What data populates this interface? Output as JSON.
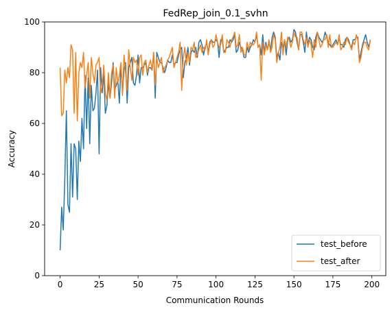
{
  "chart_data": {
    "type": "line",
    "title": "FedRep_join_0.1_svhn",
    "xlabel": "Communication Rounds",
    "ylabel": "Accuracy",
    "xlim": [
      -9.95,
      208.95
    ],
    "ylim": [
      0,
      100
    ],
    "xticks": [
      0,
      25,
      50,
      75,
      100,
      125,
      150,
      175,
      200
    ],
    "yticks": [
      0,
      20,
      40,
      60,
      80,
      100
    ],
    "grid": false,
    "legend_position": "lower-right",
    "series": [
      {
        "name": "test_before",
        "color": "#1f77b4",
        "x": [
          0,
          1,
          2,
          3,
          4,
          5,
          6,
          7,
          8,
          9,
          10,
          11,
          12,
          13,
          14,
          15,
          16,
          17,
          18,
          19,
          20,
          21,
          22,
          23,
          24,
          25,
          26,
          27,
          28,
          29,
          30,
          31,
          32,
          33,
          34,
          35,
          36,
          37,
          38,
          39,
          40,
          41,
          42,
          43,
          44,
          45,
          46,
          47,
          48,
          49,
          50,
          51,
          52,
          53,
          54,
          55,
          56,
          57,
          58,
          59,
          60,
          61,
          62,
          63,
          64,
          65,
          66,
          67,
          68,
          69,
          70,
          71,
          72,
          73,
          74,
          75,
          76,
          77,
          78,
          79,
          80,
          81,
          82,
          83,
          84,
          85,
          86,
          87,
          88,
          89,
          90,
          91,
          92,
          93,
          94,
          95,
          96,
          97,
          98,
          99,
          100,
          101,
          102,
          103,
          104,
          105,
          106,
          107,
          108,
          109,
          110,
          111,
          112,
          113,
          114,
          115,
          116,
          117,
          118,
          119,
          120,
          121,
          122,
          123,
          124,
          125,
          126,
          127,
          128,
          129,
          130,
          131,
          132,
          133,
          134,
          135,
          136,
          137,
          138,
          139,
          140,
          141,
          142,
          143,
          144,
          145,
          146,
          147,
          148,
          149,
          150,
          151,
          152,
          153,
          154,
          155,
          156,
          157,
          158,
          159,
          160,
          161,
          162,
          163,
          164,
          165,
          166,
          167,
          168,
          169,
          170,
          171,
          172,
          173,
          174,
          175,
          176,
          177,
          178,
          179,
          180,
          181,
          182,
          183,
          184,
          185,
          186,
          187,
          188,
          189,
          190,
          191,
          192,
          193,
          194,
          195,
          196,
          197,
          198,
          199
        ],
        "values": [
          10,
          27,
          18,
          38,
          65,
          28,
          25,
          52,
          31,
          52,
          50,
          30,
          53,
          45,
          62,
          50,
          79,
          58,
          78,
          52,
          75,
          65,
          66,
          72,
          81,
          48,
          82,
          72,
          80,
          64,
          67,
          76,
          70,
          76,
          84,
          73,
          75,
          77,
          68,
          83,
          72,
          81,
          84,
          68,
          82,
          84,
          86,
          76,
          75,
          79,
          87,
          76,
          82,
          82,
          83,
          84,
          79,
          82,
          82,
          81,
          88,
          70,
          88,
          86,
          84,
          84,
          82,
          80,
          82,
          85,
          84,
          84,
          87,
          83,
          84,
          84,
          87,
          89,
          90,
          78,
          84,
          86,
          90,
          83,
          88,
          89,
          88,
          90,
          86,
          92,
          93,
          91,
          87,
          90,
          92,
          88,
          92,
          93,
          92,
          92,
          93,
          92,
          86,
          93,
          93,
          88,
          89,
          90,
          90,
          93,
          92,
          93,
          95,
          88,
          89,
          92,
          90,
          89,
          86,
          86,
          90,
          88,
          90,
          91,
          93,
          92,
          95,
          90,
          91,
          87,
          95,
          88,
          92,
          89,
          92,
          89,
          94,
          96,
          94,
          86,
          88,
          85,
          92,
          90,
          93,
          87,
          93,
          94,
          92,
          93,
          97,
          96,
          92,
          89,
          95,
          95,
          92,
          88,
          96,
          91,
          94,
          93,
          90,
          89,
          94,
          96,
          94,
          93,
          92,
          93,
          96,
          94,
          92,
          91,
          90,
          91,
          92,
          93,
          91,
          94,
          91,
          91,
          90,
          93,
          94,
          93,
          91,
          90,
          93,
          93,
          94,
          94,
          85,
          88,
          91,
          93,
          95,
          92,
          90,
          93
        ]
      },
      {
        "name": "test_after",
        "color": "#ff7f0e",
        "x": [
          0,
          1,
          2,
          3,
          4,
          5,
          6,
          7,
          8,
          9,
          10,
          11,
          12,
          13,
          14,
          15,
          16,
          17,
          18,
          19,
          20,
          21,
          22,
          23,
          24,
          25,
          26,
          27,
          28,
          29,
          30,
          31,
          32,
          33,
          34,
          35,
          36,
          37,
          38,
          39,
          40,
          41,
          42,
          43,
          44,
          45,
          46,
          47,
          48,
          49,
          50,
          51,
          52,
          53,
          54,
          55,
          56,
          57,
          58,
          59,
          60,
          61,
          62,
          63,
          64,
          65,
          66,
          67,
          68,
          69,
          70,
          71,
          72,
          73,
          74,
          75,
          76,
          77,
          78,
          79,
          80,
          81,
          82,
          83,
          84,
          85,
          86,
          87,
          88,
          89,
          90,
          91,
          92,
          93,
          94,
          95,
          96,
          97,
          98,
          99,
          100,
          101,
          102,
          103,
          104,
          105,
          106,
          107,
          108,
          109,
          110,
          111,
          112,
          113,
          114,
          115,
          116,
          117,
          118,
          119,
          120,
          121,
          122,
          123,
          124,
          125,
          126,
          127,
          128,
          129,
          130,
          131,
          132,
          133,
          134,
          135,
          136,
          137,
          138,
          139,
          140,
          141,
          142,
          143,
          144,
          145,
          146,
          147,
          148,
          149,
          150,
          151,
          152,
          153,
          154,
          155,
          156,
          157,
          158,
          159,
          160,
          161,
          162,
          163,
          164,
          165,
          166,
          167,
          168,
          169,
          170,
          171,
          172,
          173,
          174,
          175,
          176,
          177,
          178,
          179,
          180,
          181,
          182,
          183,
          184,
          185,
          186,
          187,
          188,
          189,
          190,
          191,
          192,
          193,
          194,
          195,
          196,
          197,
          198,
          199
        ],
        "values": [
          82,
          63,
          64,
          81,
          76,
          82,
          78,
          91,
          89,
          64,
          88,
          61,
          80,
          84,
          82,
          88,
          74,
          79,
          84,
          70,
          86,
          80,
          76,
          83,
          84,
          86,
          72,
          75,
          83,
          72,
          69,
          80,
          70,
          80,
          83,
          70,
          82,
          76,
          79,
          84,
          71,
          87,
          80,
          73,
          89,
          82,
          77,
          86,
          84,
          85,
          79,
          86,
          87,
          79,
          84,
          85,
          80,
          83,
          85,
          81,
          88,
          75,
          86,
          82,
          84,
          86,
          80,
          82,
          83,
          85,
          86,
          88,
          90,
          82,
          84,
          86,
          88,
          92,
          73,
          86,
          90,
          83,
          88,
          84,
          90,
          89,
          92,
          86,
          87,
          89,
          91,
          88,
          90,
          89,
          93,
          87,
          91,
          93,
          90,
          91,
          95,
          92,
          90,
          91,
          95,
          88,
          88,
          93,
          92,
          90,
          93,
          94,
          96,
          90,
          91,
          95,
          88,
          90,
          87,
          87,
          92,
          89,
          92,
          91,
          91,
          92,
          96,
          90,
          91,
          77,
          92,
          87,
          91,
          89,
          93,
          88,
          90,
          95,
          93,
          84,
          88,
          90,
          96,
          87,
          93,
          90,
          94,
          93,
          90,
          92,
          96,
          94,
          94,
          89,
          96,
          96,
          93,
          91,
          94,
          90,
          93,
          91,
          86,
          93,
          90,
          96,
          93,
          90,
          91,
          93,
          93,
          95,
          90,
          95,
          90,
          90,
          91,
          92,
          91,
          95,
          89,
          90,
          92,
          91,
          94,
          92,
          91,
          89,
          92,
          91,
          95,
          93,
          84,
          86,
          90,
          92,
          92,
          90,
          89,
          93
        ]
      }
    ]
  }
}
